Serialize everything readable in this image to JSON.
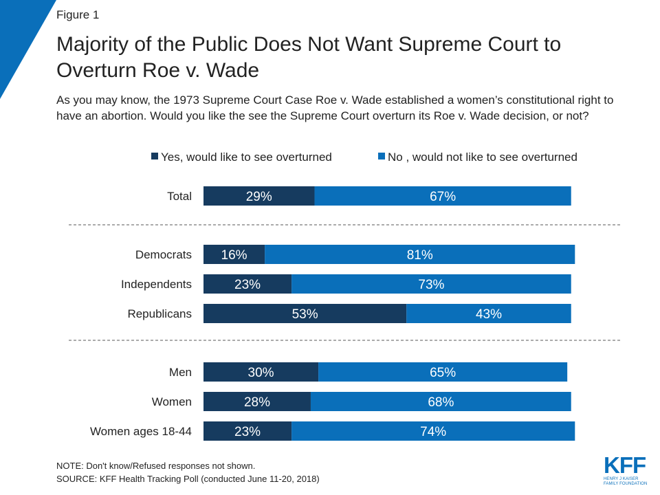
{
  "figure_label": "Figure 1",
  "title": "Majority of the Public Does Not Want Supreme Court to Overturn Roe v. Wade",
  "subtitle": "As you may know, the 1973 Supreme Court Case Roe v. Wade established a women’s constitutional right to have an abortion. Would you like the see the Supreme Court overturn its Roe v. Wade decision, or not?",
  "notes": {
    "note": "NOTE: Don't know/Refused responses not shown.",
    "source": "SOURCE: KFF Health Tracking Poll (conducted June 11-20, 2018)"
  },
  "logo": {
    "mark": "KFF",
    "line1": "HENRY J KAISER",
    "line2": "FAMILY FOUNDATION"
  },
  "colors": {
    "yes": "#163b5f",
    "no": "#0a6fba",
    "corner": "#0a6fba"
  },
  "chart_data": {
    "type": "bar",
    "orientation": "horizontal",
    "stacked": true,
    "categories": [
      "Total",
      "Democrats",
      "Independents",
      "Republicans",
      "Men",
      "Women",
      "Women ages 18-44"
    ],
    "groups": [
      [
        "Total"
      ],
      [
        "Democrats",
        "Independents",
        "Republicans"
      ],
      [
        "Men",
        "Women",
        "Women ages 18-44"
      ]
    ],
    "series": [
      {
        "name": "Yes, would like to see overturned",
        "values": [
          29,
          16,
          23,
          53,
          30,
          28,
          23
        ]
      },
      {
        "name": "No , would not like to see overturned",
        "values": [
          67,
          81,
          73,
          43,
          65,
          68,
          74
        ]
      }
    ],
    "value_suffix": "%",
    "xlim": [
      0,
      100
    ],
    "legend": "top",
    "grid": false
  }
}
